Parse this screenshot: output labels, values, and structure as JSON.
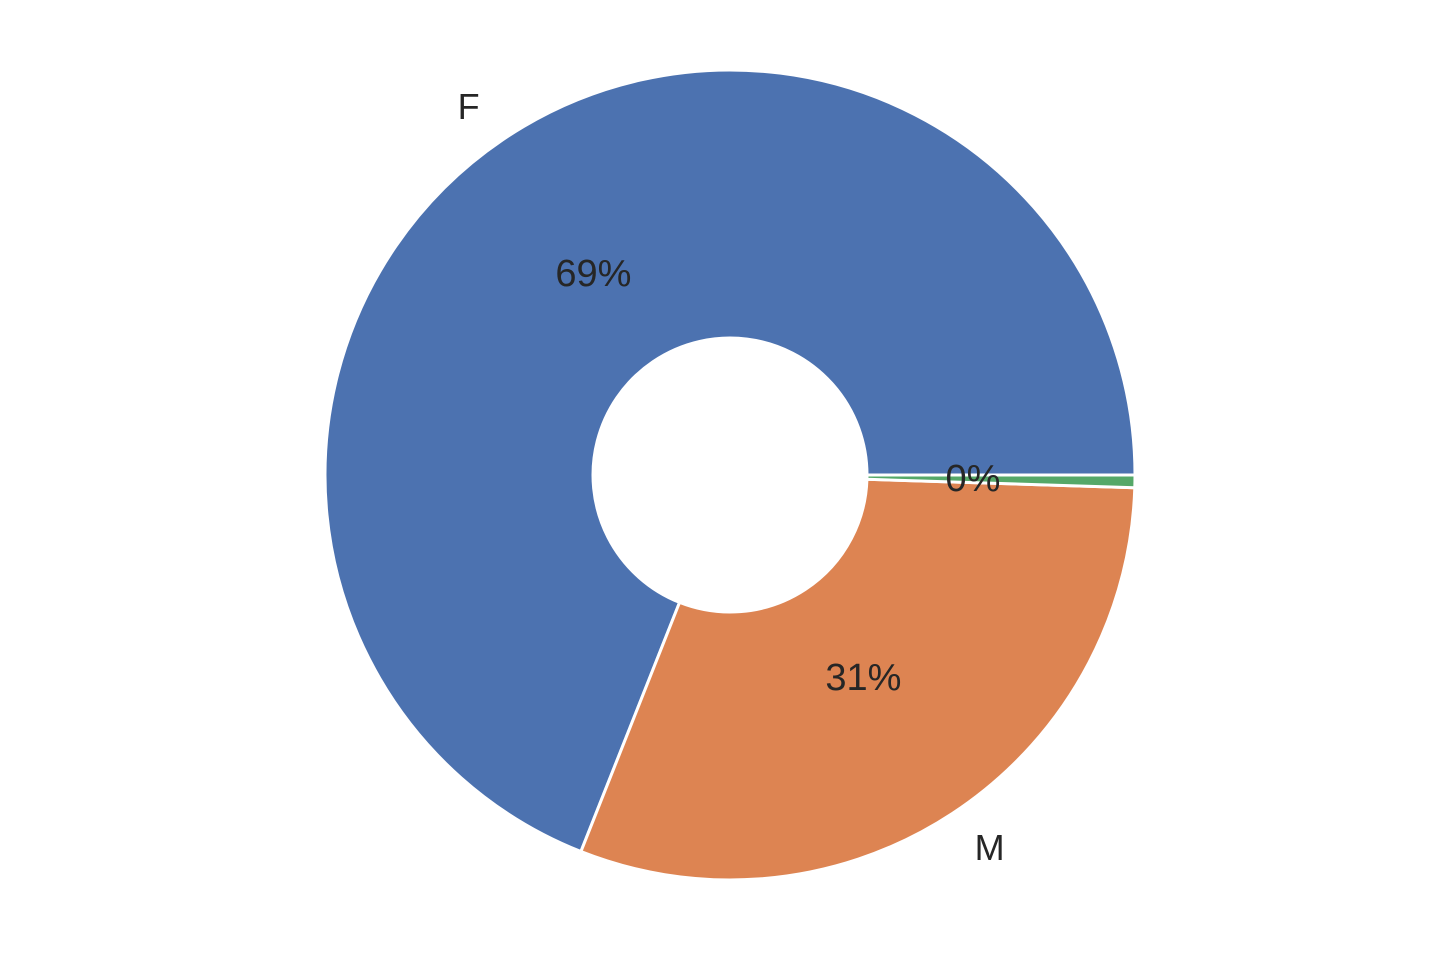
{
  "chart_data": {
    "type": "pie",
    "donut": true,
    "categories": [
      "F",
      "M",
      ""
    ],
    "values": [
      0.69,
      0.305,
      0.005
    ],
    "percent_labels": [
      "69%",
      "31%",
      "0%"
    ],
    "colors": [
      "#4c72b0",
      "#dd8452",
      "#55a868"
    ],
    "title": "",
    "legend": "none"
  }
}
